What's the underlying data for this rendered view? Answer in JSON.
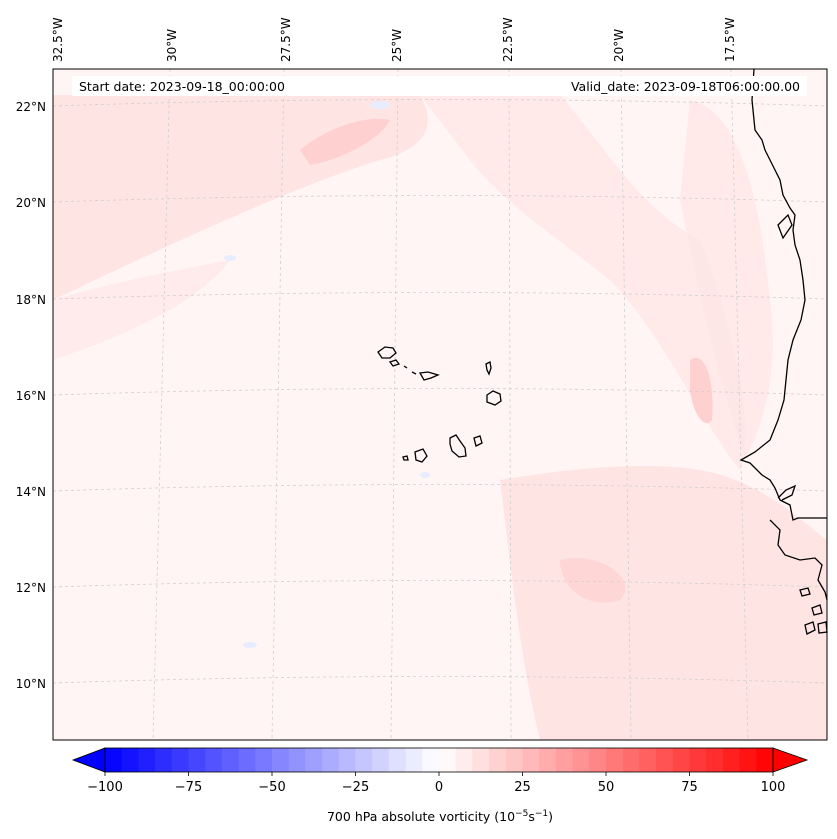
{
  "header": {
    "start_date": "Start date: 2023-09-18_00:00:00",
    "valid_date": "Valid_date: 2023-09-18T06:00:00.00"
  },
  "map": {
    "lon_labels": [
      "32.5°W",
      "30°W",
      "27.5°W",
      "25°W",
      "22.5°W",
      "20°W",
      "17.5°W"
    ],
    "lat_labels": [
      "22°N",
      "20°N",
      "18°N",
      "16°N",
      "14°N",
      "12°N",
      "10°N"
    ],
    "field_colors": {
      "background": "#fff5f5",
      "light_band": "#ffe4e4",
      "weak_negative": "#eef0ff"
    },
    "coastline_color": "#000000",
    "grid_color": "#c8c8c8"
  },
  "colorbar": {
    "tick_labels": [
      "−100",
      "−75",
      "−50",
      "−25",
      "0",
      "25",
      "50",
      "75",
      "100"
    ],
    "tick_values": [
      -100,
      -75,
      -50,
      -25,
      0,
      25,
      50,
      75,
      100
    ],
    "range": [
      -100,
      100
    ],
    "step": 5,
    "cmap": "bwr",
    "label_prefix": "700 hPa absolute vorticity (10",
    "label_exp1": "−5",
    "label_mid": "s",
    "label_exp2": "−1",
    "label_suffix": ")"
  }
}
